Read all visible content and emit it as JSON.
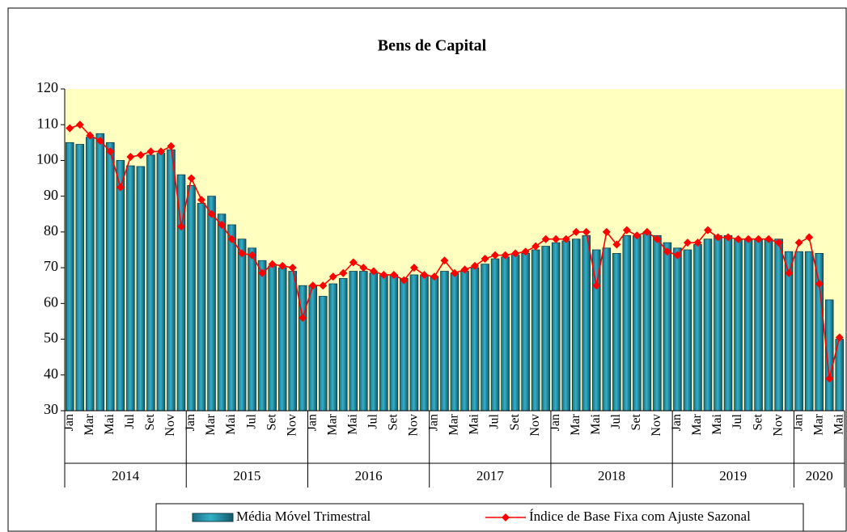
{
  "chart_data": {
    "type": "bar+line",
    "title": "Bens de Capital",
    "categories": [
      "Jan",
      null,
      "Mar",
      null,
      "Mai",
      null,
      "Jul",
      null,
      "Set",
      null,
      "Nov",
      null,
      "Jan",
      null,
      "Mar",
      null,
      "Mai",
      null,
      "Jul",
      null,
      "Set",
      null,
      "Nov",
      null,
      "Jan",
      null,
      "Mar",
      null,
      "Mai",
      null,
      "Jul",
      null,
      "Set",
      null,
      "Nov",
      null,
      "Jan",
      null,
      "Mar",
      null,
      "Mai",
      null,
      "Jul",
      null,
      "Set",
      null,
      "Nov",
      null,
      "Jan",
      null,
      "Mar",
      null,
      "Mai",
      null,
      "Jul",
      null,
      "Set",
      null,
      "Nov",
      null,
      "Jan",
      null,
      "Mar",
      null,
      "Mai",
      null,
      "Jul",
      null,
      "Set",
      null,
      "Nov",
      null,
      "Jan",
      null,
      "Mar",
      null,
      "Mai"
    ],
    "years": [
      "2014",
      "2015",
      "2016",
      "2017",
      "2018",
      "2019",
      "2020"
    ],
    "series": [
      {
        "name": "Média Móvel Trimestral",
        "type": "bar",
        "color": "#33b0c8",
        "values": [
          105,
          104.5,
          106.5,
          107.5,
          105,
          100,
          98.5,
          98.3,
          101.5,
          102,
          103,
          96,
          93,
          88,
          90,
          85,
          82,
          78,
          75.5,
          72,
          70.5,
          70,
          69,
          65,
          65,
          62,
          65.5,
          67,
          69,
          69,
          68.5,
          68,
          68,
          67,
          68,
          68,
          67.5,
          69,
          68.5,
          69,
          70,
          71,
          72.5,
          73,
          73.5,
          74,
          75,
          76,
          77,
          77.5,
          78,
          79,
          75,
          75.5,
          74,
          79,
          79,
          80,
          79,
          77,
          75.5,
          75,
          76.5,
          78,
          79,
          79,
          78,
          78,
          78,
          78,
          78,
          74.5,
          74.5,
          74.5,
          74,
          61,
          50
        ]
      },
      {
        "name": "Índice de Base Fixa com Ajuste Sazonal",
        "type": "line",
        "color": "#ff0000",
        "values": [
          109,
          110,
          107,
          105.5,
          102.5,
          92.5,
          101,
          101.5,
          102.5,
          102.5,
          104,
          81.5,
          95,
          89,
          85,
          82,
          78,
          74,
          73.5,
          68.5,
          71,
          70.5,
          70,
          56,
          65,
          65,
          67.5,
          68.5,
          71.5,
          70,
          69,
          68,
          68,
          66.5,
          70,
          68,
          67.5,
          72,
          68.5,
          69.5,
          70.5,
          72.5,
          73.5,
          73.5,
          74,
          74.5,
          76,
          78,
          78,
          78,
          80,
          80,
          65,
          80,
          76.5,
          80.5,
          79,
          80,
          78,
          74.5,
          73.5,
          77,
          77,
          80.5,
          78.5,
          78.5,
          78,
          78,
          78,
          78,
          77,
          68.5,
          77,
          78.5,
          65.5,
          39,
          50.5
        ]
      }
    ],
    "ylim": [
      30,
      120
    ],
    "yticks": [
      30,
      40,
      50,
      60,
      70,
      80,
      90,
      100,
      110,
      120
    ],
    "plot_background": "#ffffc0",
    "grid": false,
    "legend": "bottom"
  }
}
